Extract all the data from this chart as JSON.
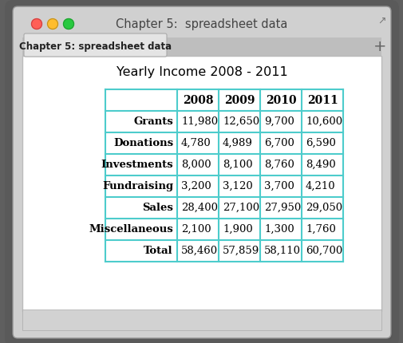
{
  "title": "Chapter 5:  spreadsheet data",
  "tab_label": "Chapter 5: spreadsheet data",
  "table_title": "Yearly Income 2008 - 2011",
  "headers": [
    "",
    "2008",
    "2009",
    "2010",
    "2011"
  ],
  "rows": [
    [
      "Grants",
      "11,980",
      "12,650",
      "9,700",
      "10,600"
    ],
    [
      "Donations",
      "4,780",
      "4,989",
      "6,700",
      "6,590"
    ],
    [
      "Investments",
      "8,000",
      "8,100",
      "8,760",
      "8,490"
    ],
    [
      "Fundraising",
      "3,200",
      "3,120",
      "3,700",
      "4,210"
    ],
    [
      "Sales",
      "28,400",
      "27,100",
      "27,950",
      "29,050"
    ],
    [
      "Miscellaneous",
      "2,100",
      "1,900",
      "1,300",
      "1,760"
    ],
    [
      "Total",
      "58,460",
      "57,859",
      "58,110",
      "60,700"
    ]
  ],
  "border_color": "#4DCCCC",
  "window_bg": "#AAAAAA",
  "titlebar_bg": "#D0D0D0",
  "tab_bg": "#C0C0C0",
  "active_tab_bg": "#E4E4E4",
  "content_bg": "#FFFFFF",
  "bottom_bar_bg": "#C8C8C8",
  "window_title_color": "#444444",
  "tab_text_color": "#222222",
  "text_color": "#000000",
  "red_btn": "#FF5F57",
  "yellow_btn": "#FFBD2E",
  "green_btn": "#28C940",
  "shadow_color": "#666666"
}
